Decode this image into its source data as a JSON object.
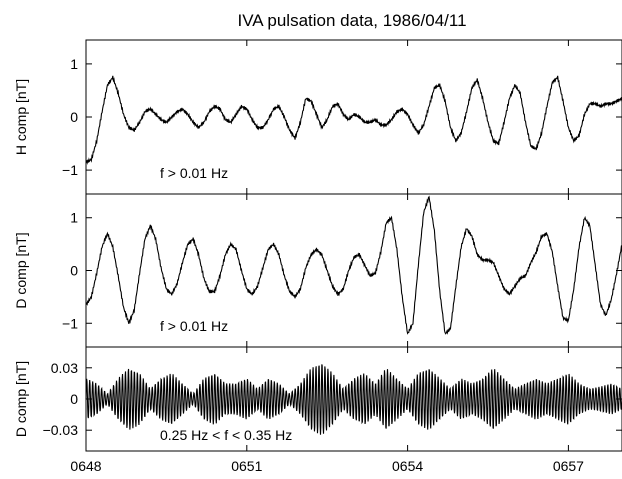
{
  "figure": {
    "title": "IVA pulsation data, 1986/04/11"
  },
  "x_axis": {
    "range": [
      648,
      658
    ],
    "ticks": [
      648,
      651,
      654,
      657
    ],
    "tick_labels": [
      "0648",
      "0651",
      "0654",
      "0657"
    ]
  },
  "chart_data": [
    {
      "type": "line",
      "panel": "top",
      "ylabel": "H comp [nT]",
      "annotation": "f > 0.01 Hz",
      "ylim": [
        -1.45,
        1.45
      ],
      "yticks": [
        -1,
        0,
        1
      ],
      "ytick_labels": [
        "−1",
        "0",
        "1"
      ],
      "line_color": "#000000",
      "x": [
        648.0,
        648.1,
        648.2,
        648.3,
        648.4,
        648.5,
        648.6,
        648.7,
        648.8,
        648.9,
        649.0,
        649.1,
        649.2,
        649.3,
        649.4,
        649.5,
        649.6,
        649.7,
        649.8,
        649.9,
        650.0,
        650.1,
        650.2,
        650.3,
        650.4,
        650.5,
        650.6,
        650.7,
        650.8,
        650.9,
        651.0,
        651.1,
        651.2,
        651.3,
        651.4,
        651.5,
        651.6,
        651.7,
        651.8,
        651.9,
        652.0,
        652.1,
        652.2,
        652.3,
        652.4,
        652.5,
        652.6,
        652.7,
        652.8,
        652.9,
        653.0,
        653.1,
        653.2,
        653.3,
        653.4,
        653.5,
        653.6,
        653.7,
        653.8,
        653.9,
        654.0,
        654.1,
        654.2,
        654.3,
        654.4,
        654.5,
        654.6,
        654.7,
        654.8,
        654.9,
        655.0,
        655.1,
        655.2,
        655.3,
        655.4,
        655.5,
        655.6,
        655.7,
        655.8,
        655.9,
        656.0,
        656.1,
        656.2,
        656.3,
        656.4,
        656.5,
        656.6,
        656.7,
        656.8,
        656.9,
        657.0,
        657.1,
        657.2,
        657.3,
        657.4,
        657.5,
        657.6,
        657.7,
        657.8,
        657.9,
        658.0
      ],
      "y": [
        -0.85,
        -0.8,
        -0.45,
        0.1,
        0.6,
        0.75,
        0.45,
        0.05,
        -0.2,
        -0.25,
        -0.1,
        0.1,
        0.15,
        0.05,
        -0.05,
        -0.1,
        0.0,
        0.1,
        0.15,
        0.05,
        -0.1,
        -0.2,
        -0.1,
        0.1,
        0.2,
        0.15,
        -0.05,
        -0.1,
        0.05,
        0.2,
        0.15,
        -0.05,
        -0.2,
        -0.2,
        -0.05,
        0.15,
        0.2,
        0.0,
        -0.25,
        -0.4,
        -0.1,
        0.35,
        0.3,
        0.05,
        -0.2,
        -0.05,
        0.2,
        0.25,
        0.05,
        -0.05,
        0.05,
        0.0,
        -0.1,
        -0.1,
        -0.05,
        -0.15,
        -0.15,
        -0.05,
        0.1,
        0.15,
        0.05,
        -0.15,
        -0.3,
        -0.15,
        0.2,
        0.55,
        0.6,
        0.3,
        -0.2,
        -0.45,
        -0.3,
        0.1,
        0.55,
        0.7,
        0.35,
        -0.1,
        -0.45,
        -0.5,
        -0.1,
        0.35,
        0.6,
        0.45,
        -0.1,
        -0.55,
        -0.6,
        -0.3,
        0.2,
        0.65,
        0.75,
        0.3,
        -0.2,
        -0.45,
        -0.35,
        0.05,
        0.25,
        0.25,
        0.2,
        0.25,
        0.25,
        0.3,
        0.35
      ]
    },
    {
      "type": "line",
      "panel": "middle",
      "ylabel": "D comp [nT]",
      "annotation": "f > 0.01 Hz",
      "ylim": [
        -1.45,
        1.45
      ],
      "yticks": [
        -1,
        0,
        1
      ],
      "ytick_labels": [
        "−1",
        "0",
        "1"
      ],
      "line_color": "#000000",
      "x": [
        648.0,
        648.1,
        648.2,
        648.3,
        648.4,
        648.5,
        648.6,
        648.7,
        648.8,
        648.9,
        649.0,
        649.1,
        649.2,
        649.3,
        649.4,
        649.5,
        649.6,
        649.7,
        649.8,
        649.9,
        650.0,
        650.1,
        650.2,
        650.3,
        650.4,
        650.5,
        650.6,
        650.7,
        650.8,
        650.9,
        651.0,
        651.1,
        651.2,
        651.3,
        651.4,
        651.5,
        651.6,
        651.7,
        651.8,
        651.9,
        652.0,
        652.1,
        652.2,
        652.3,
        652.4,
        652.5,
        652.6,
        652.7,
        652.8,
        652.9,
        653.0,
        653.1,
        653.2,
        653.3,
        653.4,
        653.5,
        653.6,
        653.7,
        653.8,
        653.9,
        654.0,
        654.1,
        654.2,
        654.3,
        654.4,
        654.5,
        654.6,
        654.7,
        654.8,
        654.9,
        655.0,
        655.1,
        655.2,
        655.3,
        655.4,
        655.5,
        655.6,
        655.7,
        655.8,
        655.9,
        656.0,
        656.1,
        656.2,
        656.3,
        656.4,
        656.5,
        656.6,
        656.7,
        656.8,
        656.9,
        657.0,
        657.1,
        657.2,
        657.3,
        657.4,
        657.5,
        657.6,
        657.7,
        657.8,
        657.9,
        658.0
      ],
      "y": [
        -0.65,
        -0.5,
        -0.05,
        0.45,
        0.7,
        0.45,
        -0.1,
        -0.7,
        -1.0,
        -0.75,
        -0.05,
        0.6,
        0.85,
        0.6,
        0.05,
        -0.35,
        -0.45,
        -0.25,
        0.15,
        0.5,
        0.6,
        0.3,
        -0.15,
        -0.4,
        -0.4,
        -0.1,
        0.3,
        0.5,
        0.4,
        0.0,
        -0.35,
        -0.45,
        -0.3,
        0.05,
        0.4,
        0.5,
        0.3,
        -0.1,
        -0.4,
        -0.5,
        -0.35,
        0.05,
        0.3,
        0.4,
        0.3,
        0.0,
        -0.3,
        -0.45,
        -0.35,
        0.0,
        0.25,
        0.3,
        0.1,
        -0.1,
        -0.05,
        0.35,
        0.9,
        1.0,
        0.4,
        -0.5,
        -1.2,
        -1.0,
        0.1,
        1.1,
        1.4,
        0.75,
        -0.4,
        -1.2,
        -1.1,
        -0.3,
        0.45,
        0.8,
        0.65,
        0.3,
        0.2,
        0.2,
        0.15,
        -0.1,
        -0.35,
        -0.45,
        -0.3,
        -0.15,
        -0.1,
        0.15,
        0.35,
        0.65,
        0.7,
        0.35,
        -0.3,
        -0.9,
        -0.95,
        -0.35,
        0.45,
        1.0,
        0.85,
        0.1,
        -0.65,
        -0.85,
        -0.55,
        -0.05,
        0.5
      ]
    },
    {
      "type": "line",
      "panel": "bottom",
      "ylabel": "D comp [nT]",
      "annotation": "0.25 Hz < f < 0.35 Hz",
      "ylim": [
        -0.05,
        0.05
      ],
      "yticks": [
        -0.03,
        0,
        0.03
      ],
      "ytick_labels": [
        "−0.03",
        "0",
        "0.03"
      ],
      "line_color": "#000000",
      "oscillation_per_min": 18,
      "envelope_x": [
        648.0,
        648.2,
        648.4,
        648.6,
        648.8,
        649.0,
        649.2,
        649.4,
        649.6,
        649.8,
        650.0,
        650.2,
        650.4,
        650.6,
        650.8,
        651.0,
        651.2,
        651.4,
        651.6,
        651.8,
        652.0,
        652.2,
        652.4,
        652.6,
        652.8,
        653.0,
        653.2,
        653.4,
        653.6,
        653.8,
        654.0,
        654.2,
        654.4,
        654.6,
        654.8,
        655.0,
        655.2,
        655.4,
        655.6,
        655.8,
        656.0,
        656.2,
        656.4,
        656.6,
        656.8,
        657.0,
        657.2,
        657.4,
        657.6,
        657.8,
        658.0
      ],
      "envelope_y": [
        0.02,
        0.015,
        0.005,
        0.02,
        0.03,
        0.025,
        0.01,
        0.02,
        0.025,
        0.015,
        0.005,
        0.02,
        0.025,
        0.015,
        0.015,
        0.02,
        0.01,
        0.02,
        0.015,
        0.005,
        0.015,
        0.03,
        0.035,
        0.025,
        0.01,
        0.02,
        0.025,
        0.015,
        0.03,
        0.02,
        0.01,
        0.025,
        0.03,
        0.02,
        0.01,
        0.02,
        0.015,
        0.02,
        0.03,
        0.02,
        0.01,
        0.015,
        0.02,
        0.015,
        0.02,
        0.025,
        0.015,
        0.01,
        0.012,
        0.015,
        0.01
      ]
    }
  ]
}
